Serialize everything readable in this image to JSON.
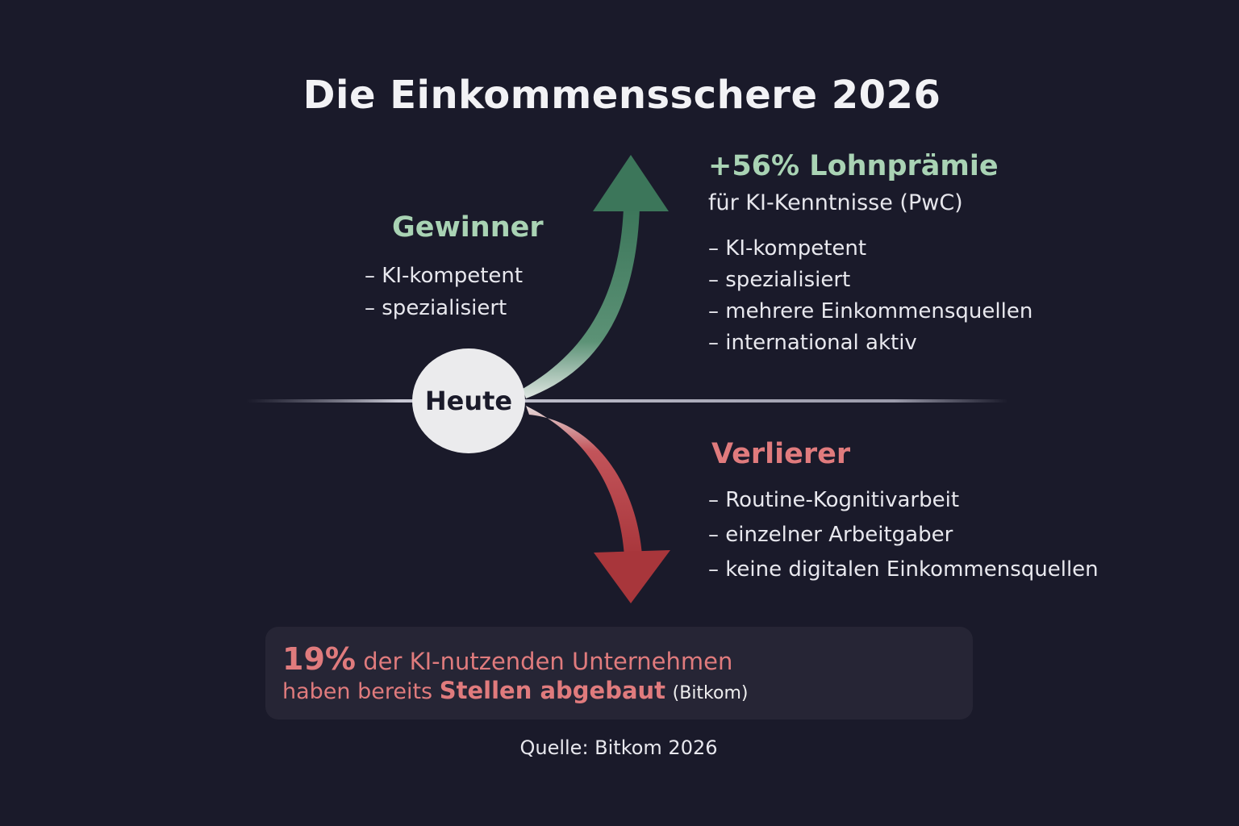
{
  "title": "Die Einkommensschere 2026",
  "center_label": "Heute",
  "winners": {
    "heading": "Gewinner",
    "items": [
      "KI-kompetent",
      "spezialisiert"
    ]
  },
  "premium": {
    "heading": "+56% Lohnprämie",
    "subtitle": "für KI-Kenntnisse (PwC)",
    "items": [
      "KI-kompetent",
      "spezialisiert",
      "mehrere Einkommensquellen",
      "international aktiv"
    ]
  },
  "losers": {
    "heading": "Verlierer",
    "items": [
      "Routine-Kognitivarbeit",
      "einzelner Arbeitgaber",
      "keine digitalen Einkommensquellen"
    ]
  },
  "callout": {
    "percent": "19%",
    "line1_rest": "der KI-nutzenden Unternehmen",
    "line2_start": "haben bereits",
    "line2_bold": "Stellen abgebaut",
    "line2_source": "(Bitkom)"
  },
  "source": "Quelle: Bitkom 2026",
  "colors": {
    "background": "#1a1a2a",
    "winner": "#3f7a5e",
    "winner_text": "#a9d3b4",
    "loser": "#b03a3e",
    "loser_text": "#e07b7d"
  }
}
